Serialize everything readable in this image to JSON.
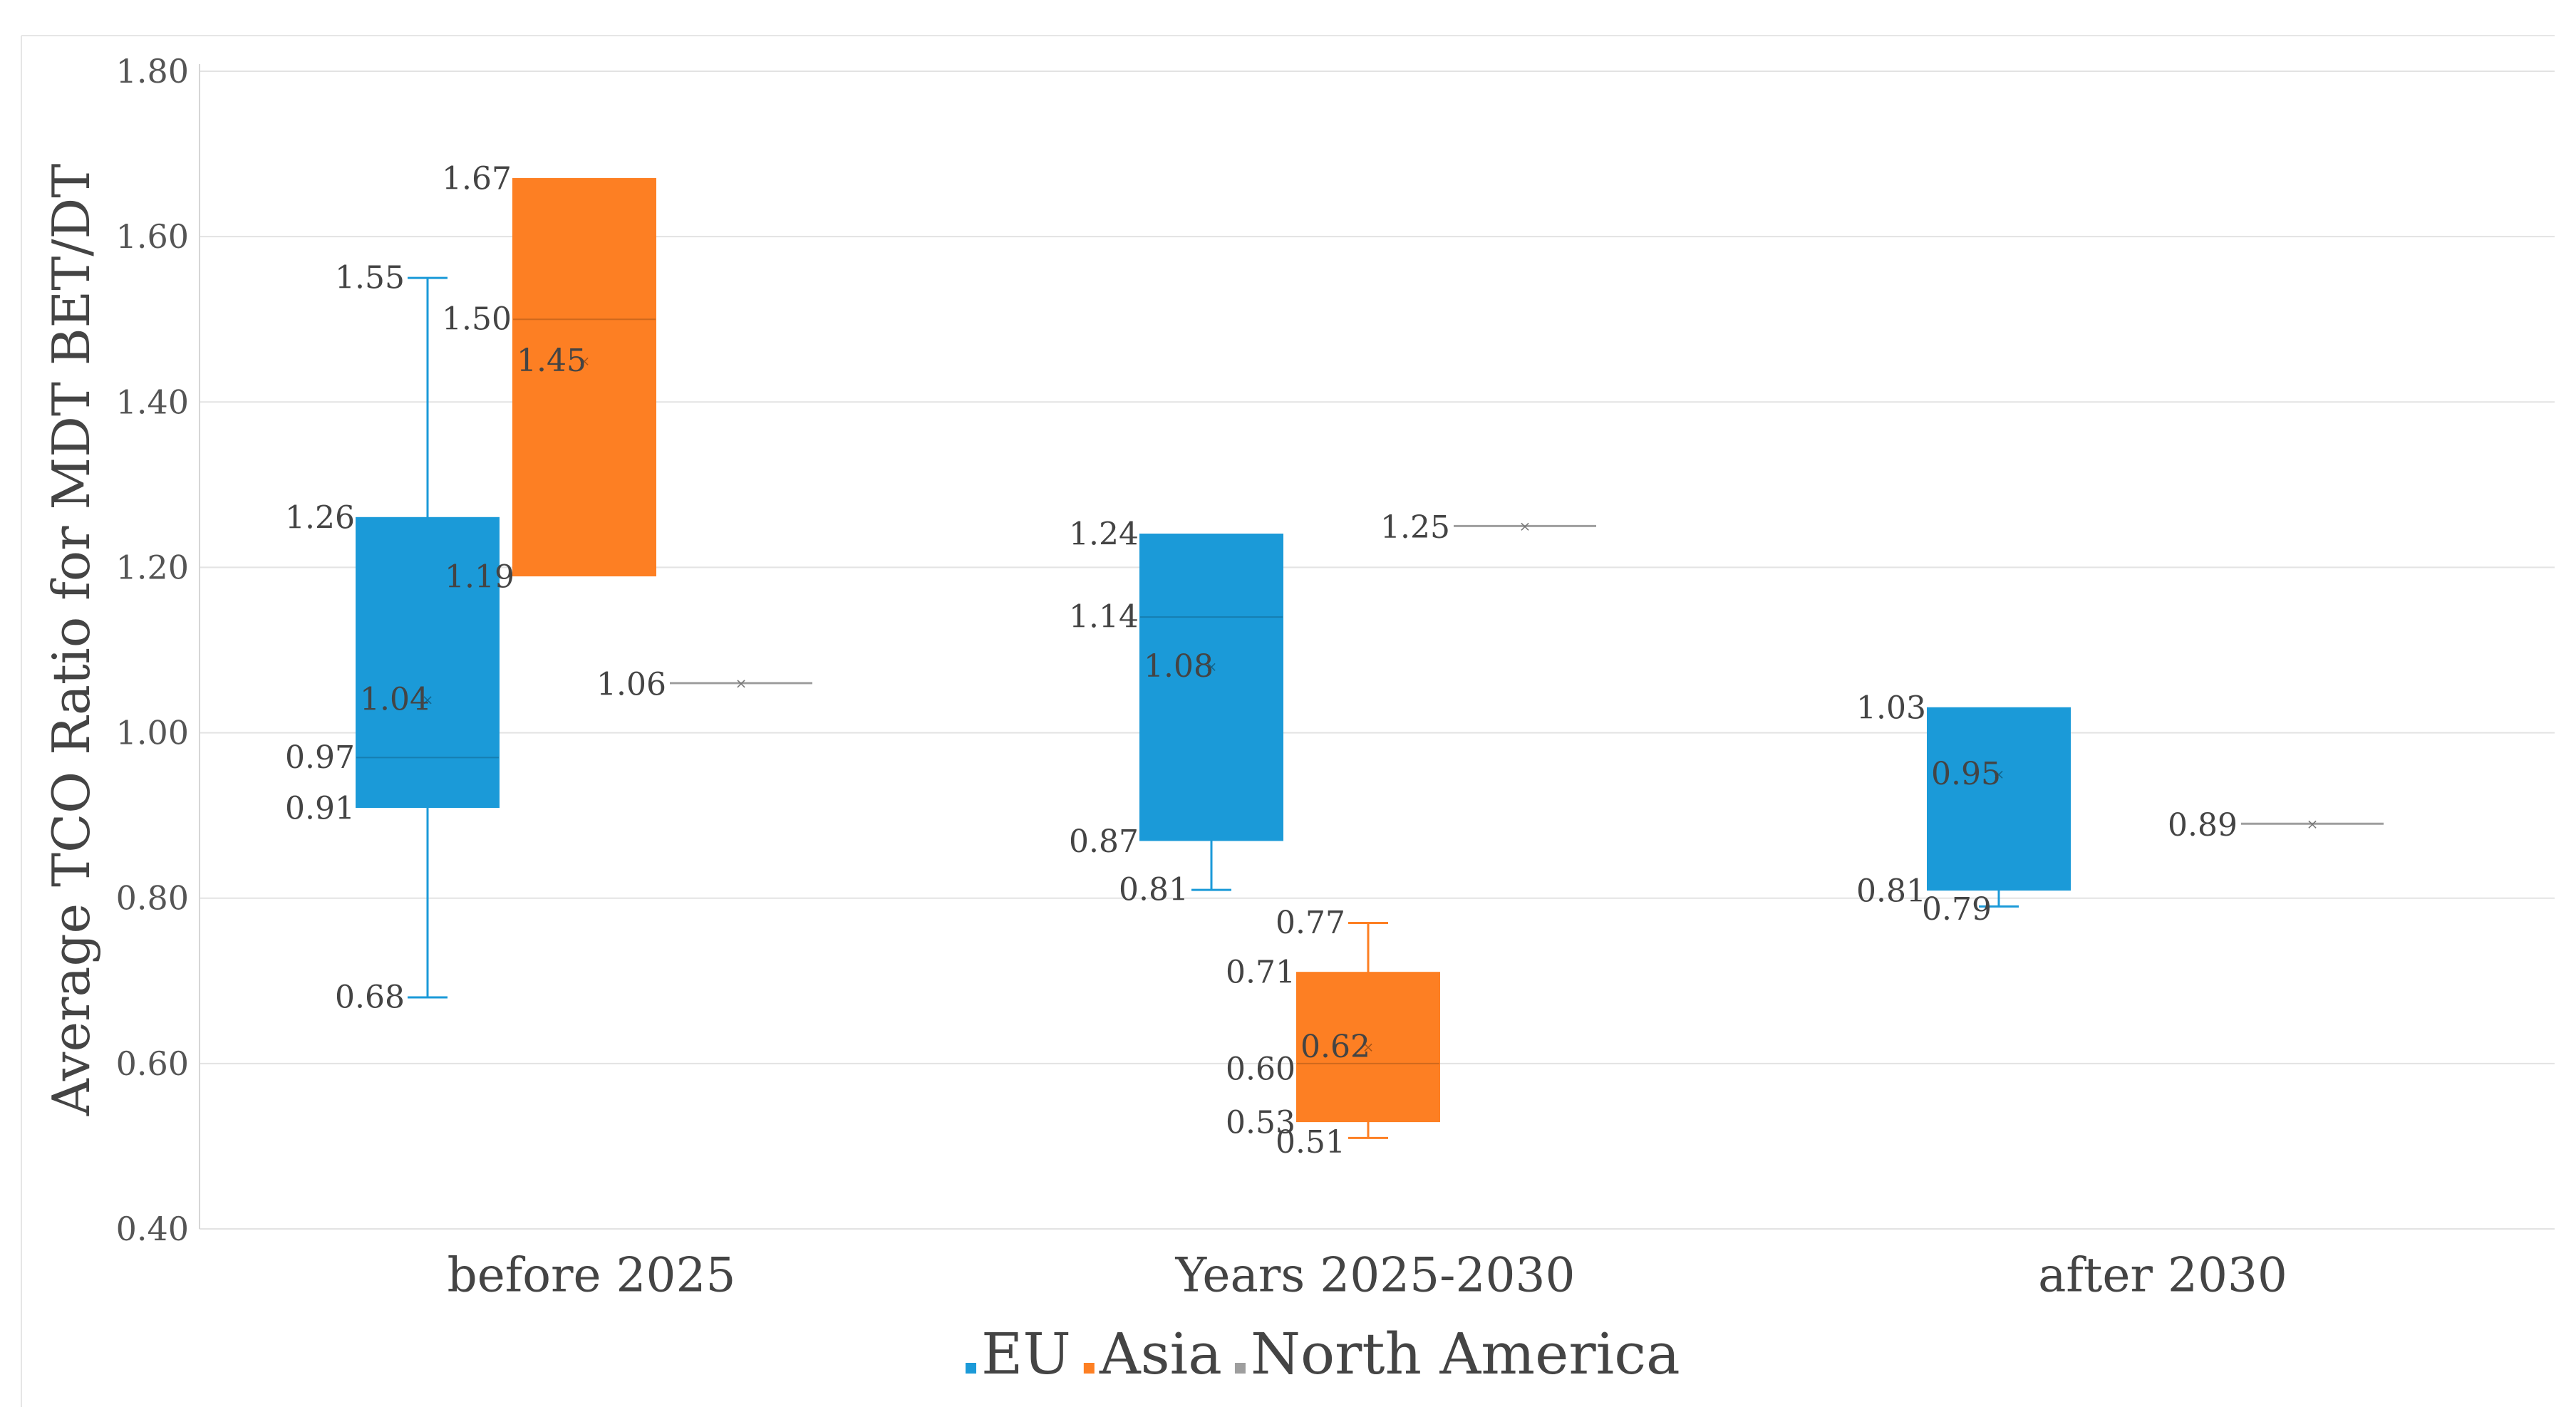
{
  "chart_data": {
    "type": "boxplot",
    "title": "",
    "xlabel": "",
    "ylabel": "Average TCO Ratio for MDT BET/DT",
    "ylim": [
      0.4,
      1.8
    ],
    "yticks": [
      "0.40",
      "0.60",
      "0.80",
      "1.00",
      "1.20",
      "1.40",
      "1.60",
      "1.80"
    ],
    "categories": [
      "before 2025",
      "Years 2025-2030",
      "after 2030"
    ],
    "colors": {
      "EU": "#1b9ad8",
      "Asia": "#fd7f23",
      "North America": "#9e9e9e"
    },
    "legend": {
      "position": "bottom",
      "entries": [
        "EU",
        "Asia",
        "North America"
      ]
    },
    "series": [
      {
        "name": "EU",
        "boxes": [
          {
            "category": "before 2025",
            "min": 0.68,
            "q1": 0.91,
            "median": 0.97,
            "q3": 1.26,
            "max": 1.55,
            "mean": 1.04,
            "labels": {
              "min": "0.68",
              "q1": "0.91",
              "median": "0.97",
              "q3": "1.26",
              "max": "1.55",
              "mean": "1.04"
            }
          },
          {
            "category": "Years 2025-2030",
            "min": 0.81,
            "q1": 0.87,
            "median": 1.14,
            "q3": 1.24,
            "max": 1.24,
            "mean": 1.08,
            "labels": {
              "min": "0.81",
              "q1": "0.87",
              "median": "1.14",
              "q3": "1.24",
              "mean": "1.08"
            }
          },
          {
            "category": "after 2030",
            "min": 0.79,
            "q1": 0.81,
            "median": 1.03,
            "q3": 1.03,
            "max": 1.03,
            "mean": 0.95,
            "labels": {
              "min": "0.79",
              "q1": "0.81",
              "q3": "1.03",
              "mean": "0.95"
            }
          }
        ]
      },
      {
        "name": "Asia",
        "boxes": [
          {
            "category": "before 2025",
            "min": 1.19,
            "q1": 1.19,
            "median": 1.5,
            "q3": 1.67,
            "max": 1.67,
            "mean": 1.45,
            "labels": {
              "q1": "1.19",
              "median": "1.50",
              "q3": "1.67",
              "mean": "1.45"
            }
          },
          {
            "category": "Years 2025-2030",
            "min": 0.51,
            "q1": 0.53,
            "median": 0.6,
            "q3": 0.71,
            "max": 0.77,
            "mean": 0.62,
            "labels": {
              "min": "0.51",
              "q1": "0.53",
              "median": "0.60",
              "q3": "0.71",
              "max": "0.77",
              "mean": "0.62"
            }
          }
        ]
      },
      {
        "name": "North America",
        "boxes": [
          {
            "category": "before 2025",
            "min": 1.06,
            "q1": 1.06,
            "median": 1.06,
            "q3": 1.06,
            "max": 1.06,
            "mean": 1.06,
            "labels": {
              "mean": "1.06"
            }
          },
          {
            "category": "Years 2025-2030",
            "min": 1.25,
            "q1": 1.25,
            "median": 1.25,
            "q3": 1.25,
            "max": 1.25,
            "mean": 1.25,
            "labels": {
              "mean": "1.25"
            }
          },
          {
            "category": "after 2030",
            "min": 0.89,
            "q1": 0.89,
            "median": 0.89,
            "q3": 0.89,
            "max": 0.89,
            "mean": 0.89,
            "labels": {
              "mean": "0.89"
            }
          }
        ]
      }
    ]
  }
}
